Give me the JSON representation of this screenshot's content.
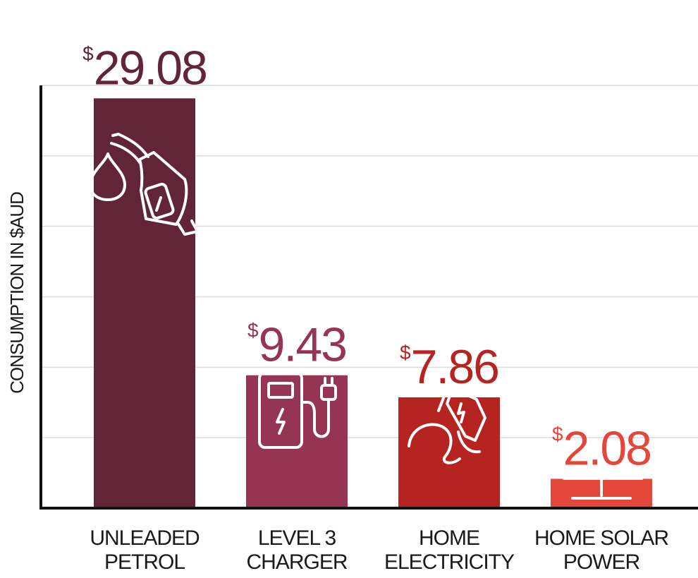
{
  "chart_data": {
    "type": "bar",
    "ylabel": "CONSUMPTION IN $AUD",
    "currency_symbol": "$",
    "categories": [
      [
        "UNLEADED",
        "PETROL"
      ],
      [
        "LEVEL 3",
        "CHARGER"
      ],
      [
        "HOME",
        "ELECTRICITY"
      ],
      [
        "HOME SOLAR",
        "POWER"
      ]
    ],
    "values": [
      29.08,
      9.43,
      7.86,
      2.08
    ],
    "value_labels": [
      "29.08",
      "9.43",
      "7.86",
      "2.08"
    ],
    "colors": [
      "#612537",
      "#953552",
      "#b62421",
      "#e5463a"
    ],
    "icons": [
      "fuel-pump-icon",
      "ev-charger-icon",
      "ev-plug-icon",
      "solar-panel-icon"
    ],
    "ylim": [
      0,
      30
    ],
    "grid": true
  }
}
